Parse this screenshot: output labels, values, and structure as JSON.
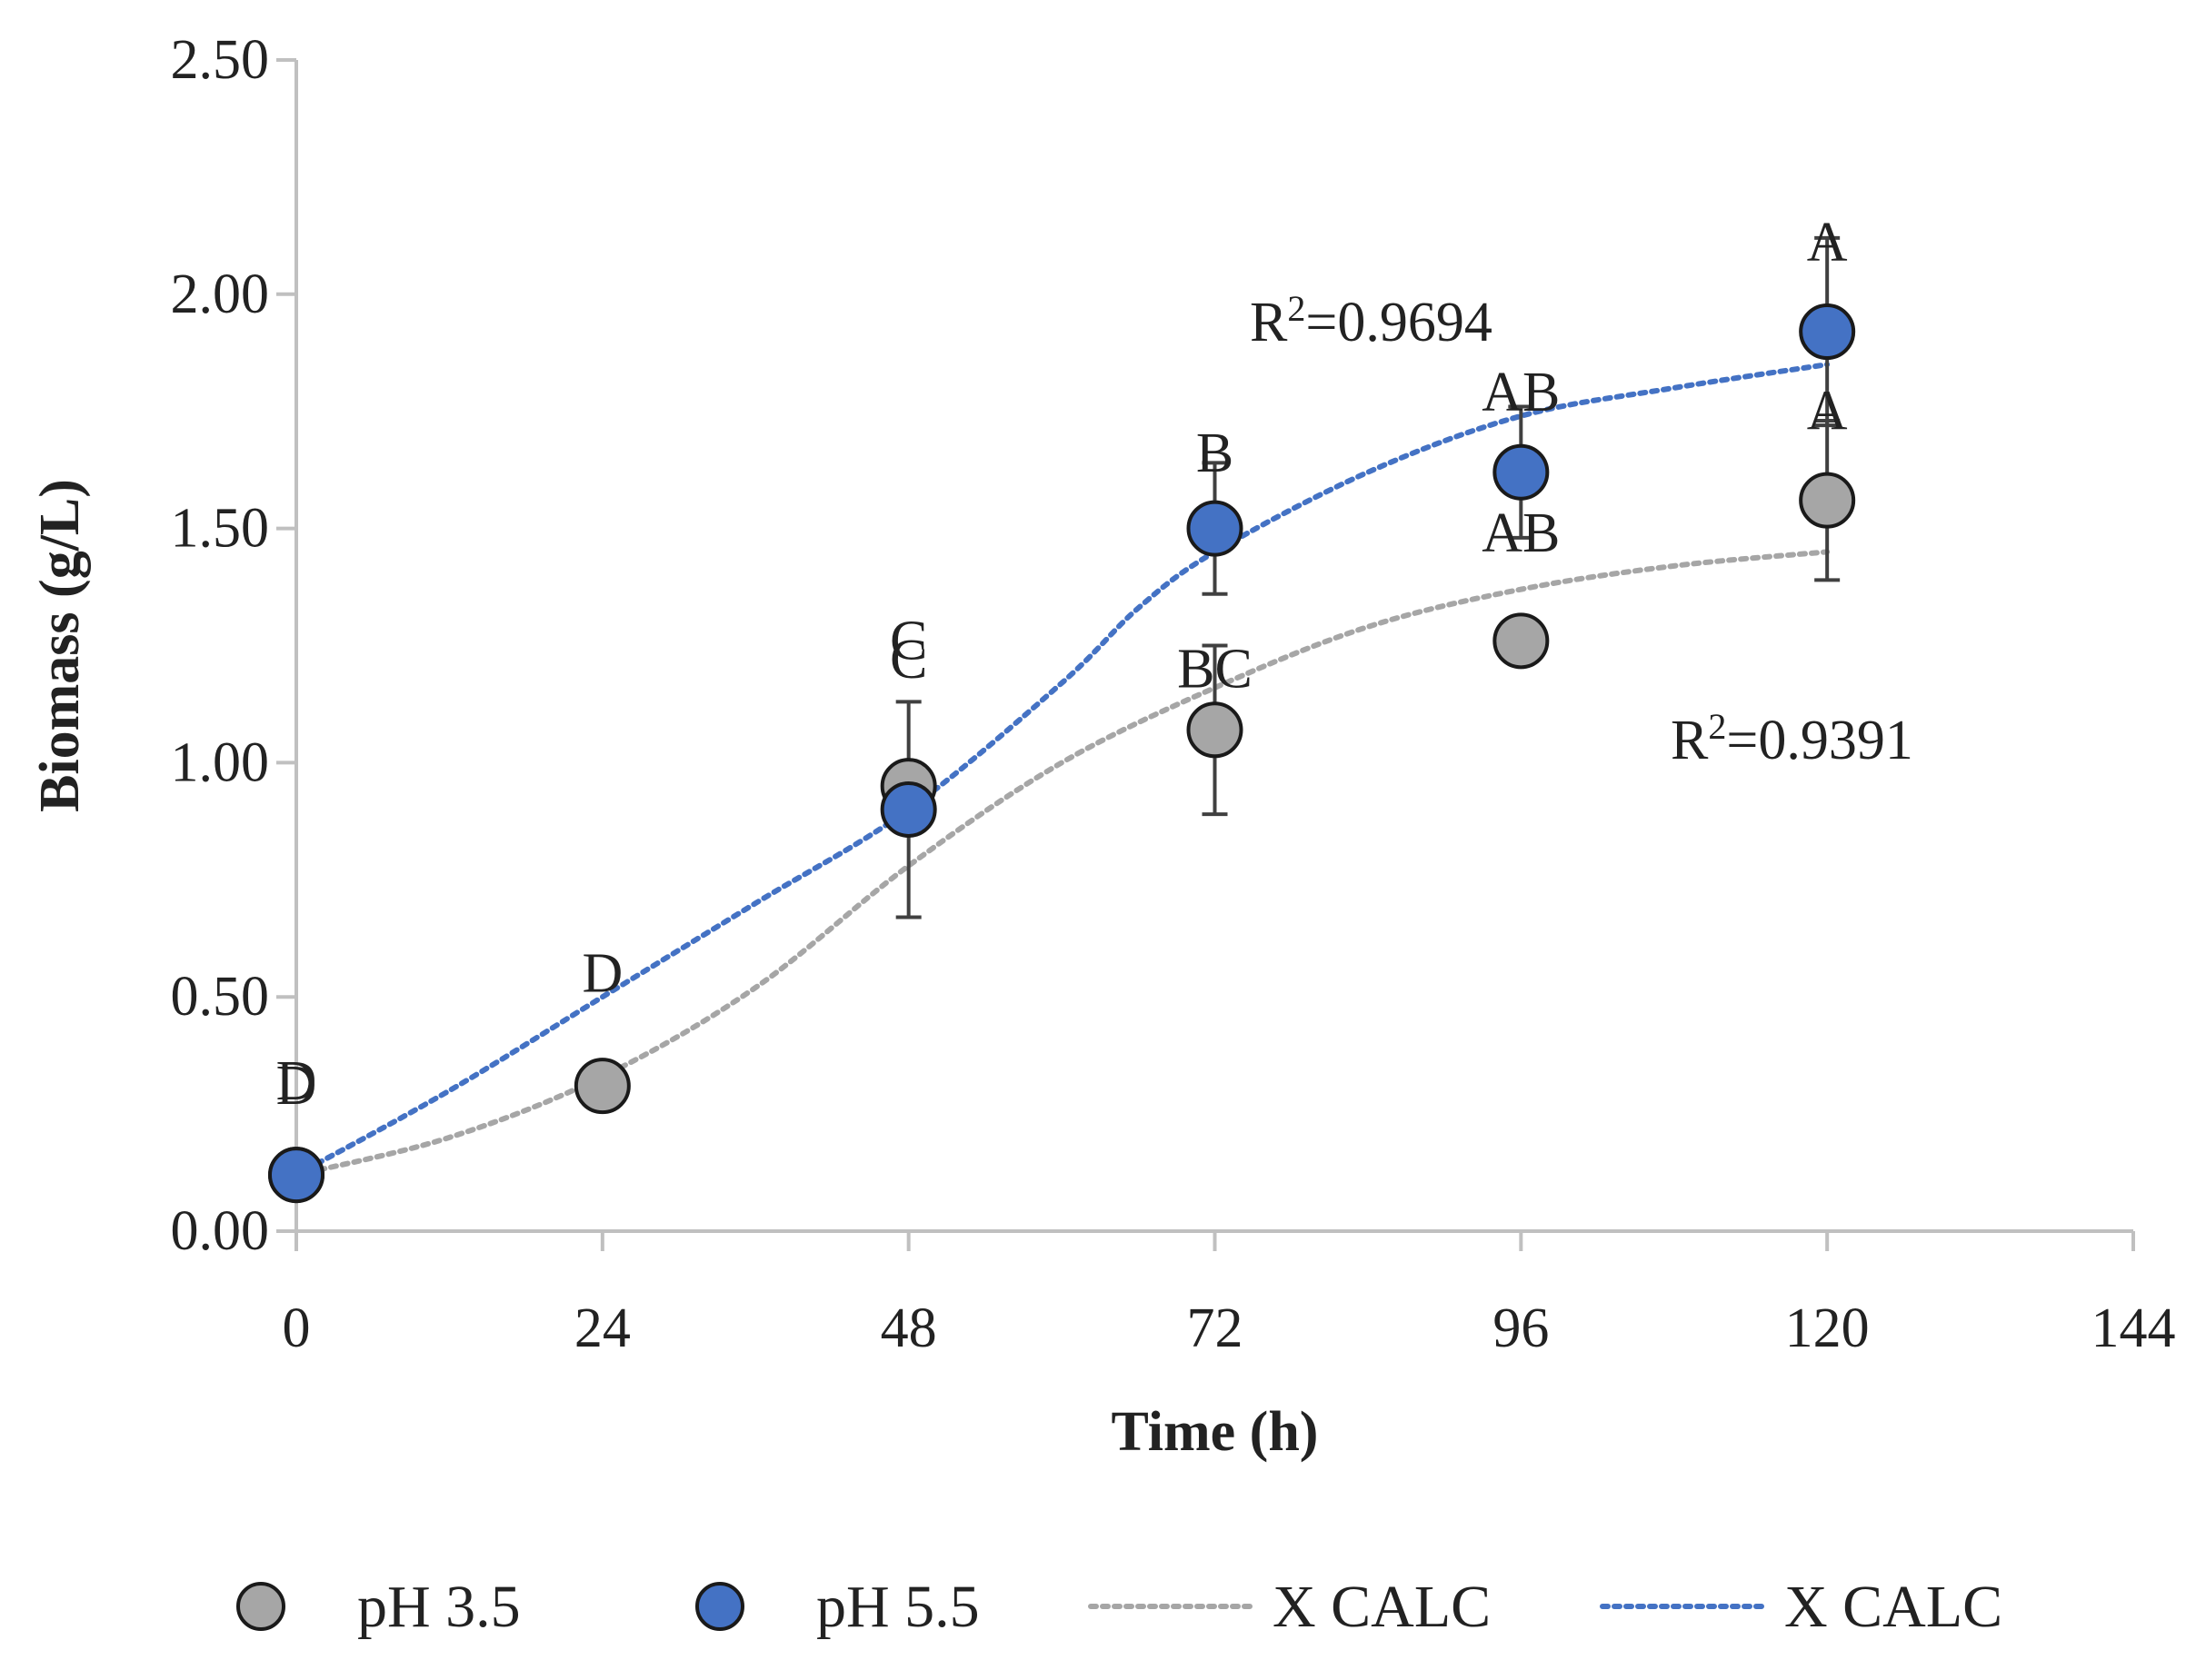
{
  "chart_data": {
    "type": "scatter",
    "title": "",
    "xlabel": "Time (h)",
    "ylabel": "Biomass (g/L)",
    "xlim": [
      0,
      144
    ],
    "ylim": [
      0,
      2.5
    ],
    "xticks": [
      "0",
      "24",
      "48",
      "72",
      "96",
      "120",
      "144"
    ],
    "yticks": [
      "0.00",
      "0.50",
      "1.00",
      "1.50",
      "2.00",
      "2.50"
    ],
    "grid": false,
    "legend_position": "bottom",
    "series": [
      {
        "name": "pH 3.5",
        "color": "#a6a6a6",
        "x": [
          0,
          24,
          48,
          72,
          96,
          120
        ],
        "y": [
          0.12,
          0.31,
          0.95,
          1.07,
          1.26,
          1.56
        ],
        "error": [
          0.05,
          0.05,
          0.05,
          0.18,
          0.0,
          0.17
        ],
        "letters": [
          "D",
          "D",
          "C",
          "BC",
          "AB",
          "A"
        ]
      },
      {
        "name": "pH 5.5",
        "color": "#4472c4",
        "x": [
          0,
          48,
          72,
          96,
          120
        ],
        "y": [
          0.12,
          0.9,
          1.5,
          1.62,
          1.92
        ],
        "error": [
          0.05,
          0.23,
          0.14,
          0.14,
          0.2
        ],
        "letters": [
          "D",
          "C",
          "B",
          "AB",
          "A"
        ]
      }
    ],
    "fits": [
      {
        "name": "X CALC",
        "for_series": "pH 3.5",
        "color": "#a6a6a6",
        "r2_label": "R",
        "r2_sup": "2",
        "r2_value": "=0.9391",
        "x": [
          0,
          12,
          24,
          36,
          48,
          60,
          72,
          84,
          96,
          108,
          120
        ],
        "y": [
          0.12,
          0.2,
          0.33,
          0.52,
          0.78,
          1.0,
          1.16,
          1.29,
          1.37,
          1.42,
          1.45
        ]
      },
      {
        "name": "X CALC",
        "for_series": "pH 5.5",
        "color": "#4472c4",
        "r2_label": "R",
        "r2_sup": "2",
        "r2_value": "=0.9694",
        "x": [
          0,
          12,
          24,
          36,
          48,
          60,
          66,
          72,
          84,
          96,
          108,
          120
        ],
        "y": [
          0.12,
          0.3,
          0.5,
          0.7,
          0.9,
          1.17,
          1.33,
          1.45,
          1.62,
          1.74,
          1.8,
          1.85
        ]
      }
    ]
  }
}
